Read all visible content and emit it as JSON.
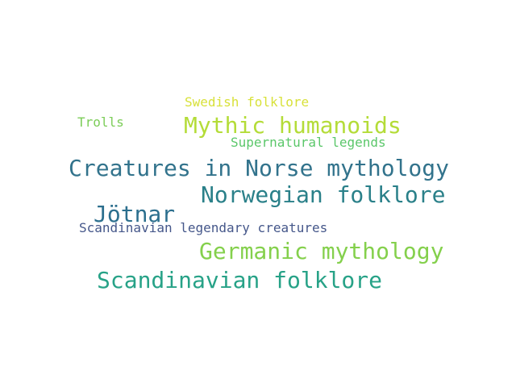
{
  "words": [
    {
      "text": "Swedish folklore",
      "color": "#d8e13a"
    },
    {
      "text": "Trolls",
      "color": "#7ccd58"
    },
    {
      "text": "Mythic humanoids",
      "color": "#b4dc38"
    },
    {
      "text": "Supernatural legends",
      "color": "#5bc76a"
    },
    {
      "text": "Creatures in Norse mythology",
      "color": "#32738c"
    },
    {
      "text": "Norwegian folklore",
      "color": "#2a8089"
    },
    {
      "text": "Jötnar",
      "color": "#2c6f8e"
    },
    {
      "text": "Scandinavian legendary creatures",
      "color": "#45578a"
    },
    {
      "text": "Germanic mythology",
      "color": "#84d04c"
    },
    {
      "text": "Scandinavian folklore",
      "color": "#27a287"
    }
  ]
}
